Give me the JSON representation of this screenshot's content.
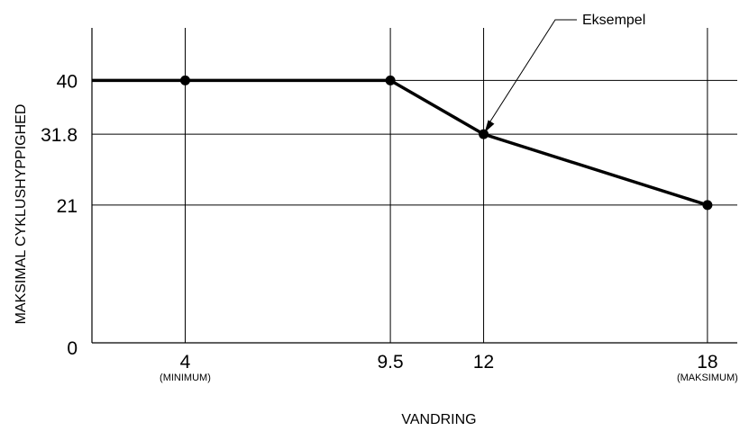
{
  "chart_data": {
    "type": "line",
    "title": "",
    "xlabel": "VANDRING",
    "ylabel": "MAKSIMAL CYKLUSHYPPIGHED",
    "x_ticks": [
      {
        "value": 4,
        "label": "4",
        "sublabel": "(MINIMUM)"
      },
      {
        "value": 9.5,
        "label": "9.5",
        "sublabel": ""
      },
      {
        "value": 12,
        "label": "12",
        "sublabel": ""
      },
      {
        "value": 18,
        "label": "18",
        "sublabel": "(MAKSIMUM)"
      }
    ],
    "y_ticks": [
      {
        "value": 0,
        "label": "0"
      },
      {
        "value": 21,
        "label": "21"
      },
      {
        "value": 31.8,
        "label": "31.8"
      },
      {
        "value": 40,
        "label": "40"
      }
    ],
    "xlim": [
      1.5,
      18.8
    ],
    "ylim": [
      0,
      48
    ],
    "grid": true,
    "line": {
      "x_start": 1.5,
      "y_start": 40,
      "points": [
        {
          "x": 4,
          "y": 40
        },
        {
          "x": 9.5,
          "y": 40
        },
        {
          "x": 12,
          "y": 31.8
        },
        {
          "x": 18,
          "y": 21
        }
      ]
    },
    "annotation": {
      "text": "Eksempel",
      "x": 12,
      "y": 31.8
    }
  }
}
